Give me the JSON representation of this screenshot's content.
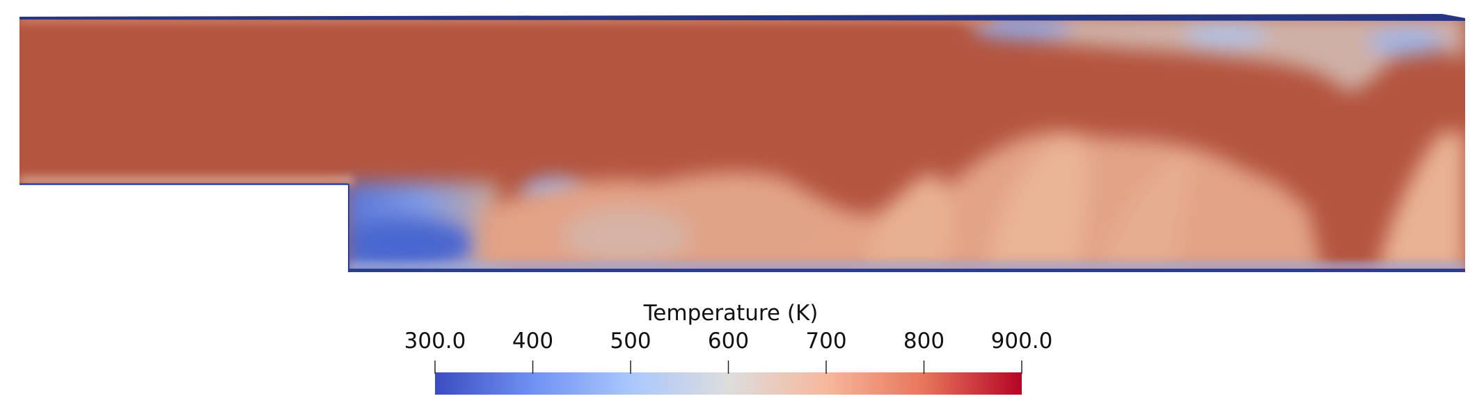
{
  "colorbar": {
    "title": "Temperature (K)",
    "range": [
      300.0,
      900.0
    ],
    "ticks": [
      {
        "value": 300,
        "label": "300.0"
      },
      {
        "value": 400,
        "label": "400"
      },
      {
        "value": 500,
        "label": "500"
      },
      {
        "value": 600,
        "label": "600"
      },
      {
        "value": 700,
        "label": "700"
      },
      {
        "value": 800,
        "label": "800"
      },
      {
        "value": 900,
        "label": "900.0"
      }
    ],
    "colormap": {
      "name": "Cool to Warm",
      "stops": [
        "#3b4cc0",
        "#6f92f3",
        "#aac7fd",
        "#dddddd",
        "#f7b89c",
        "#e7755b",
        "#b40426"
      ]
    }
  },
  "field": {
    "core_color": "#b4553f",
    "cold_color": "#4f6ccf",
    "wall_color": "#2a3b8f",
    "mixing_color": "#e8a98c"
  }
}
